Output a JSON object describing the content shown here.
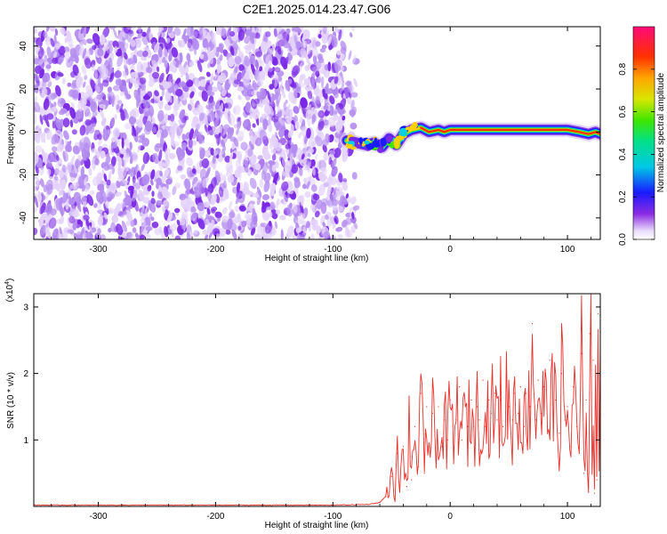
{
  "title": "C2E1.2025.014.23.47.G06",
  "colors": {
    "snr_line": "#e8302a",
    "noise_light": "#e4d2fb",
    "noise_mid": "#b48cf0",
    "noise_dark": "#7a28e6",
    "axis": "#000000"
  },
  "chart_data": [
    {
      "type": "heatmap",
      "panel": "spectrogram",
      "xlabel": "Height of straight line (km)",
      "ylabel": "Frequency (Hz)",
      "xlim": [
        -355,
        128
      ],
      "ylim": [
        -50,
        49
      ],
      "x_ticks": [
        -300,
        -200,
        -100,
        0,
        100
      ],
      "x_tick_labels": [
        "-300",
        "-200",
        "-100",
        "0",
        "100"
      ],
      "y_ticks": [
        -40,
        -20,
        0,
        20,
        40
      ],
      "y_tick_labels": [
        "-40",
        "-20",
        "0",
        "20",
        "40"
      ],
      "noise_region_x": [
        -355,
        -80
      ],
      "ridge": {
        "x": [
          -88,
          -80,
          -72,
          -65,
          -58,
          -52,
          -46,
          -40,
          -33,
          -25,
          -18,
          -10,
          -5,
          0,
          20,
          40,
          60,
          80,
          100,
          110,
          118,
          124,
          128
        ],
        "y": [
          -4,
          -5,
          -6,
          -5,
          -7,
          -3,
          -6,
          -1,
          1,
          2,
          0,
          1,
          0,
          1,
          1,
          1,
          1,
          1,
          1,
          0,
          -1,
          0,
          -1
        ]
      },
      "colorbar": {
        "label": "Normalized spectral amplitude",
        "range": [
          0,
          1
        ],
        "ticks": [
          0.0,
          0.2,
          0.4,
          0.6,
          0.8
        ],
        "tick_labels": [
          "0.0",
          "0.2",
          "0.4",
          "0.6",
          "0.8"
        ]
      }
    },
    {
      "type": "line",
      "panel": "snr",
      "xlabel": "Height of straight line (km)",
      "ylabel": "SNR (10 * v/v)",
      "y_multiplier": "(x10",
      "y_multiplier_exp": "4",
      "y_multiplier_close": ")",
      "xlim": [
        -355,
        128
      ],
      "ylim": [
        0,
        3.2
      ],
      "x_ticks": [
        -300,
        -200,
        -100,
        0,
        100
      ],
      "x_tick_labels": [
        "-300",
        "-200",
        "-100",
        "0",
        "100"
      ],
      "y_ticks": [
        1,
        2,
        3
      ],
      "y_tick_labels": [
        "1",
        "2",
        "3"
      ],
      "series": [
        {
          "color": "#e8302a",
          "x": [
            -355,
            -300,
            -200,
            -100,
            -70,
            -60,
            -55,
            -50,
            -47,
            -45,
            -43,
            -40,
            -37,
            -35,
            -33,
            -30,
            -27,
            -25,
            -22,
            -20,
            -17,
            -15,
            -12,
            -10,
            -7,
            -5,
            -2,
            0,
            3,
            5,
            8,
            10,
            13,
            15,
            18,
            20,
            23,
            25,
            28,
            30,
            33,
            35,
            38,
            40,
            43,
            45,
            48,
            50,
            53,
            55,
            58,
            60,
            63,
            65,
            68,
            70,
            73,
            75,
            78,
            80,
            83,
            85,
            88,
            90,
            93,
            95,
            98,
            100,
            103,
            105,
            108,
            110,
            112,
            114,
            116,
            118,
            119,
            120,
            121,
            122,
            123,
            124,
            125,
            126,
            127,
            128
          ],
          "y": [
            0.02,
            0.02,
            0.02,
            0.02,
            0.03,
            0.06,
            0.15,
            0.45,
            0.15,
            0.8,
            0.25,
            0.9,
            0.3,
            1.3,
            0.4,
            1.2,
            0.6,
            1.7,
            0.5,
            1.5,
            0.8,
            1.4,
            0.7,
            1.5,
            0.9,
            1.3,
            1.0,
            1.6,
            0.9,
            1.3,
            1.8,
            1.0,
            1.5,
            1.2,
            1.6,
            1.2,
            1.5,
            1.3,
            1.9,
            1.2,
            1.6,
            1.4,
            1.7,
            1.3,
            1.6,
            1.2,
            1.8,
            1.5,
            1.3,
            1.7,
            1.4,
            1.8,
            1.2,
            1.7,
            1.5,
            2.75,
            1.3,
            1.9,
            1.4,
            1.8,
            1.2,
            2.2,
            1.4,
            1.6,
            1.1,
            2.0,
            1.3,
            1.5,
            0.9,
            1.8,
            1.2,
            0.8,
            2.3,
            0.5,
            1.6,
            0.3,
            2.6,
            3.2,
            0.6,
            2.2,
            0.2,
            1.5,
            0.4,
            2.9,
            0.8,
            2.5
          ]
        }
      ]
    }
  ]
}
